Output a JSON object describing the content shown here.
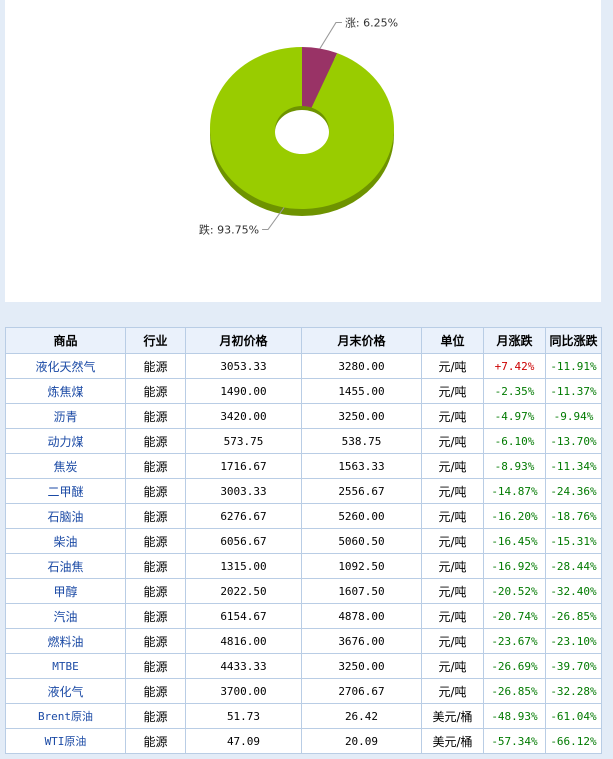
{
  "chart_data": {
    "type": "pie",
    "slices": [
      {
        "label": "涨",
        "value": 6.25,
        "display": "涨: 6.25%",
        "color": "#993366"
      },
      {
        "label": "跌",
        "value": 93.75,
        "display": "跌: 93.75%",
        "color": "#99cc00"
      }
    ],
    "donut": true
  },
  "table": {
    "headers": [
      "商品",
      "行业",
      "月初价格",
      "月末价格",
      "单位",
      "月涨跌",
      "同比涨跌"
    ],
    "rows": [
      {
        "name": "液化天然气",
        "industry": "能源",
        "start": "3053.33",
        "end": "3280.00",
        "unit": "元/吨",
        "monthly": "+7.42%",
        "yoy": "-11.91%"
      },
      {
        "name": "炼焦煤",
        "industry": "能源",
        "start": "1490.00",
        "end": "1455.00",
        "unit": "元/吨",
        "monthly": "-2.35%",
        "yoy": "-11.37%"
      },
      {
        "name": "沥青",
        "industry": "能源",
        "start": "3420.00",
        "end": "3250.00",
        "unit": "元/吨",
        "monthly": "-4.97%",
        "yoy": "-9.94%"
      },
      {
        "name": "动力煤",
        "industry": "能源",
        "start": "573.75",
        "end": "538.75",
        "unit": "元/吨",
        "monthly": "-6.10%",
        "yoy": "-13.70%"
      },
      {
        "name": "焦炭",
        "industry": "能源",
        "start": "1716.67",
        "end": "1563.33",
        "unit": "元/吨",
        "monthly": "-8.93%",
        "yoy": "-11.34%"
      },
      {
        "name": "二甲醚",
        "industry": "能源",
        "start": "3003.33",
        "end": "2556.67",
        "unit": "元/吨",
        "monthly": "-14.87%",
        "yoy": "-24.36%"
      },
      {
        "name": "石脑油",
        "industry": "能源",
        "start": "6276.67",
        "end": "5260.00",
        "unit": "元/吨",
        "monthly": "-16.20%",
        "yoy": "-18.76%"
      },
      {
        "name": "柴油",
        "industry": "能源",
        "start": "6056.67",
        "end": "5060.50",
        "unit": "元/吨",
        "monthly": "-16.45%",
        "yoy": "-15.31%"
      },
      {
        "name": "石油焦",
        "industry": "能源",
        "start": "1315.00",
        "end": "1092.50",
        "unit": "元/吨",
        "monthly": "-16.92%",
        "yoy": "-28.44%"
      },
      {
        "name": "甲醇",
        "industry": "能源",
        "start": "2022.50",
        "end": "1607.50",
        "unit": "元/吨",
        "monthly": "-20.52%",
        "yoy": "-32.40%"
      },
      {
        "name": "汽油",
        "industry": "能源",
        "start": "6154.67",
        "end": "4878.00",
        "unit": "元/吨",
        "monthly": "-20.74%",
        "yoy": "-26.85%"
      },
      {
        "name": "燃料油",
        "industry": "能源",
        "start": "4816.00",
        "end": "3676.00",
        "unit": "元/吨",
        "monthly": "-23.67%",
        "yoy": "-23.10%"
      },
      {
        "name": "MTBE",
        "industry": "能源",
        "start": "4433.33",
        "end": "3250.00",
        "unit": "元/吨",
        "monthly": "-26.69%",
        "yoy": "-39.70%"
      },
      {
        "name": "液化气",
        "industry": "能源",
        "start": "3700.00",
        "end": "2706.67",
        "unit": "元/吨",
        "monthly": "-26.85%",
        "yoy": "-32.28%"
      },
      {
        "name": "Brent原油",
        "industry": "能源",
        "start": "51.73",
        "end": "26.42",
        "unit": "美元/桶",
        "monthly": "-48.93%",
        "yoy": "-61.04%"
      },
      {
        "name": "WTI原油",
        "industry": "能源",
        "start": "47.09",
        "end": "20.09",
        "unit": "美元/桶",
        "monthly": "-57.34%",
        "yoy": "-66.12%"
      }
    ]
  }
}
